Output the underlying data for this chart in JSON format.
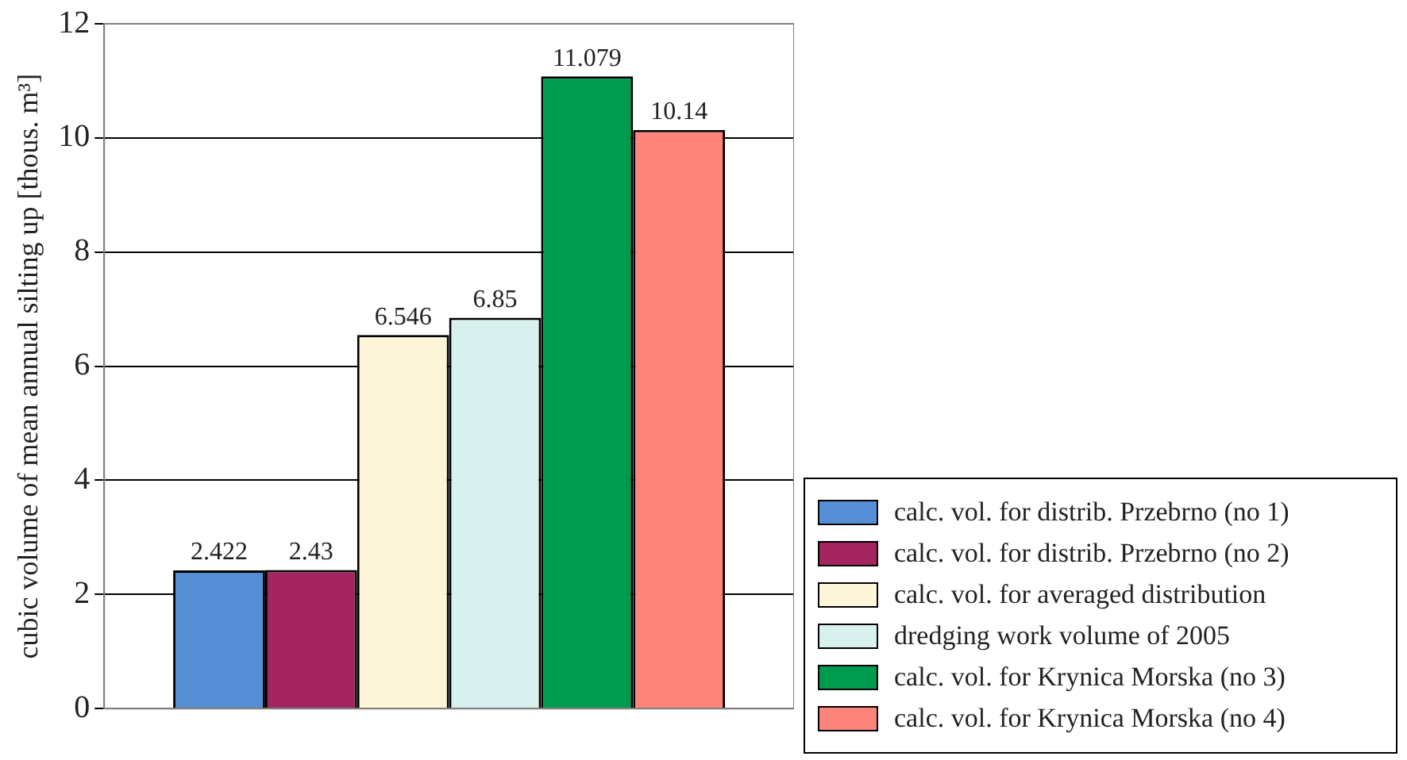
{
  "chart_data": {
    "type": "bar",
    "ylabel": "cubic volume of mean annual silting up [thous. m³]",
    "categories": [
      null
    ],
    "series": [
      {
        "name": "calc. vol. for distrib. Przebrno (no 1)",
        "color": "#558ed5",
        "values": [
          2.422
        ]
      },
      {
        "name": "calc. vol. for distrib. Przebrno (no 2)",
        "color": "#a52560",
        "values": [
          2.43
        ]
      },
      {
        "name": "calc. vol. for averaged distribution",
        "color": "#fdf5d8",
        "values": [
          6.546
        ]
      },
      {
        "name": "dredging work volume of 2005",
        "color": "#d8f1ee",
        "values": [
          6.85
        ]
      },
      {
        "name": "calc. vol. for Krynica Morska (no 3)",
        "color": "#009a4e",
        "values": [
          11.079
        ]
      },
      {
        "name": "calc. vol. for Krynica Morska (no 4)",
        "color": "#fd857b",
        "values": [
          10.14
        ]
      }
    ],
    "ylim": [
      0,
      12
    ],
    "yticks": [
      0,
      2,
      4,
      6,
      8,
      10,
      12
    ],
    "grid": "y",
    "legend": "right",
    "data_labels": true
  }
}
